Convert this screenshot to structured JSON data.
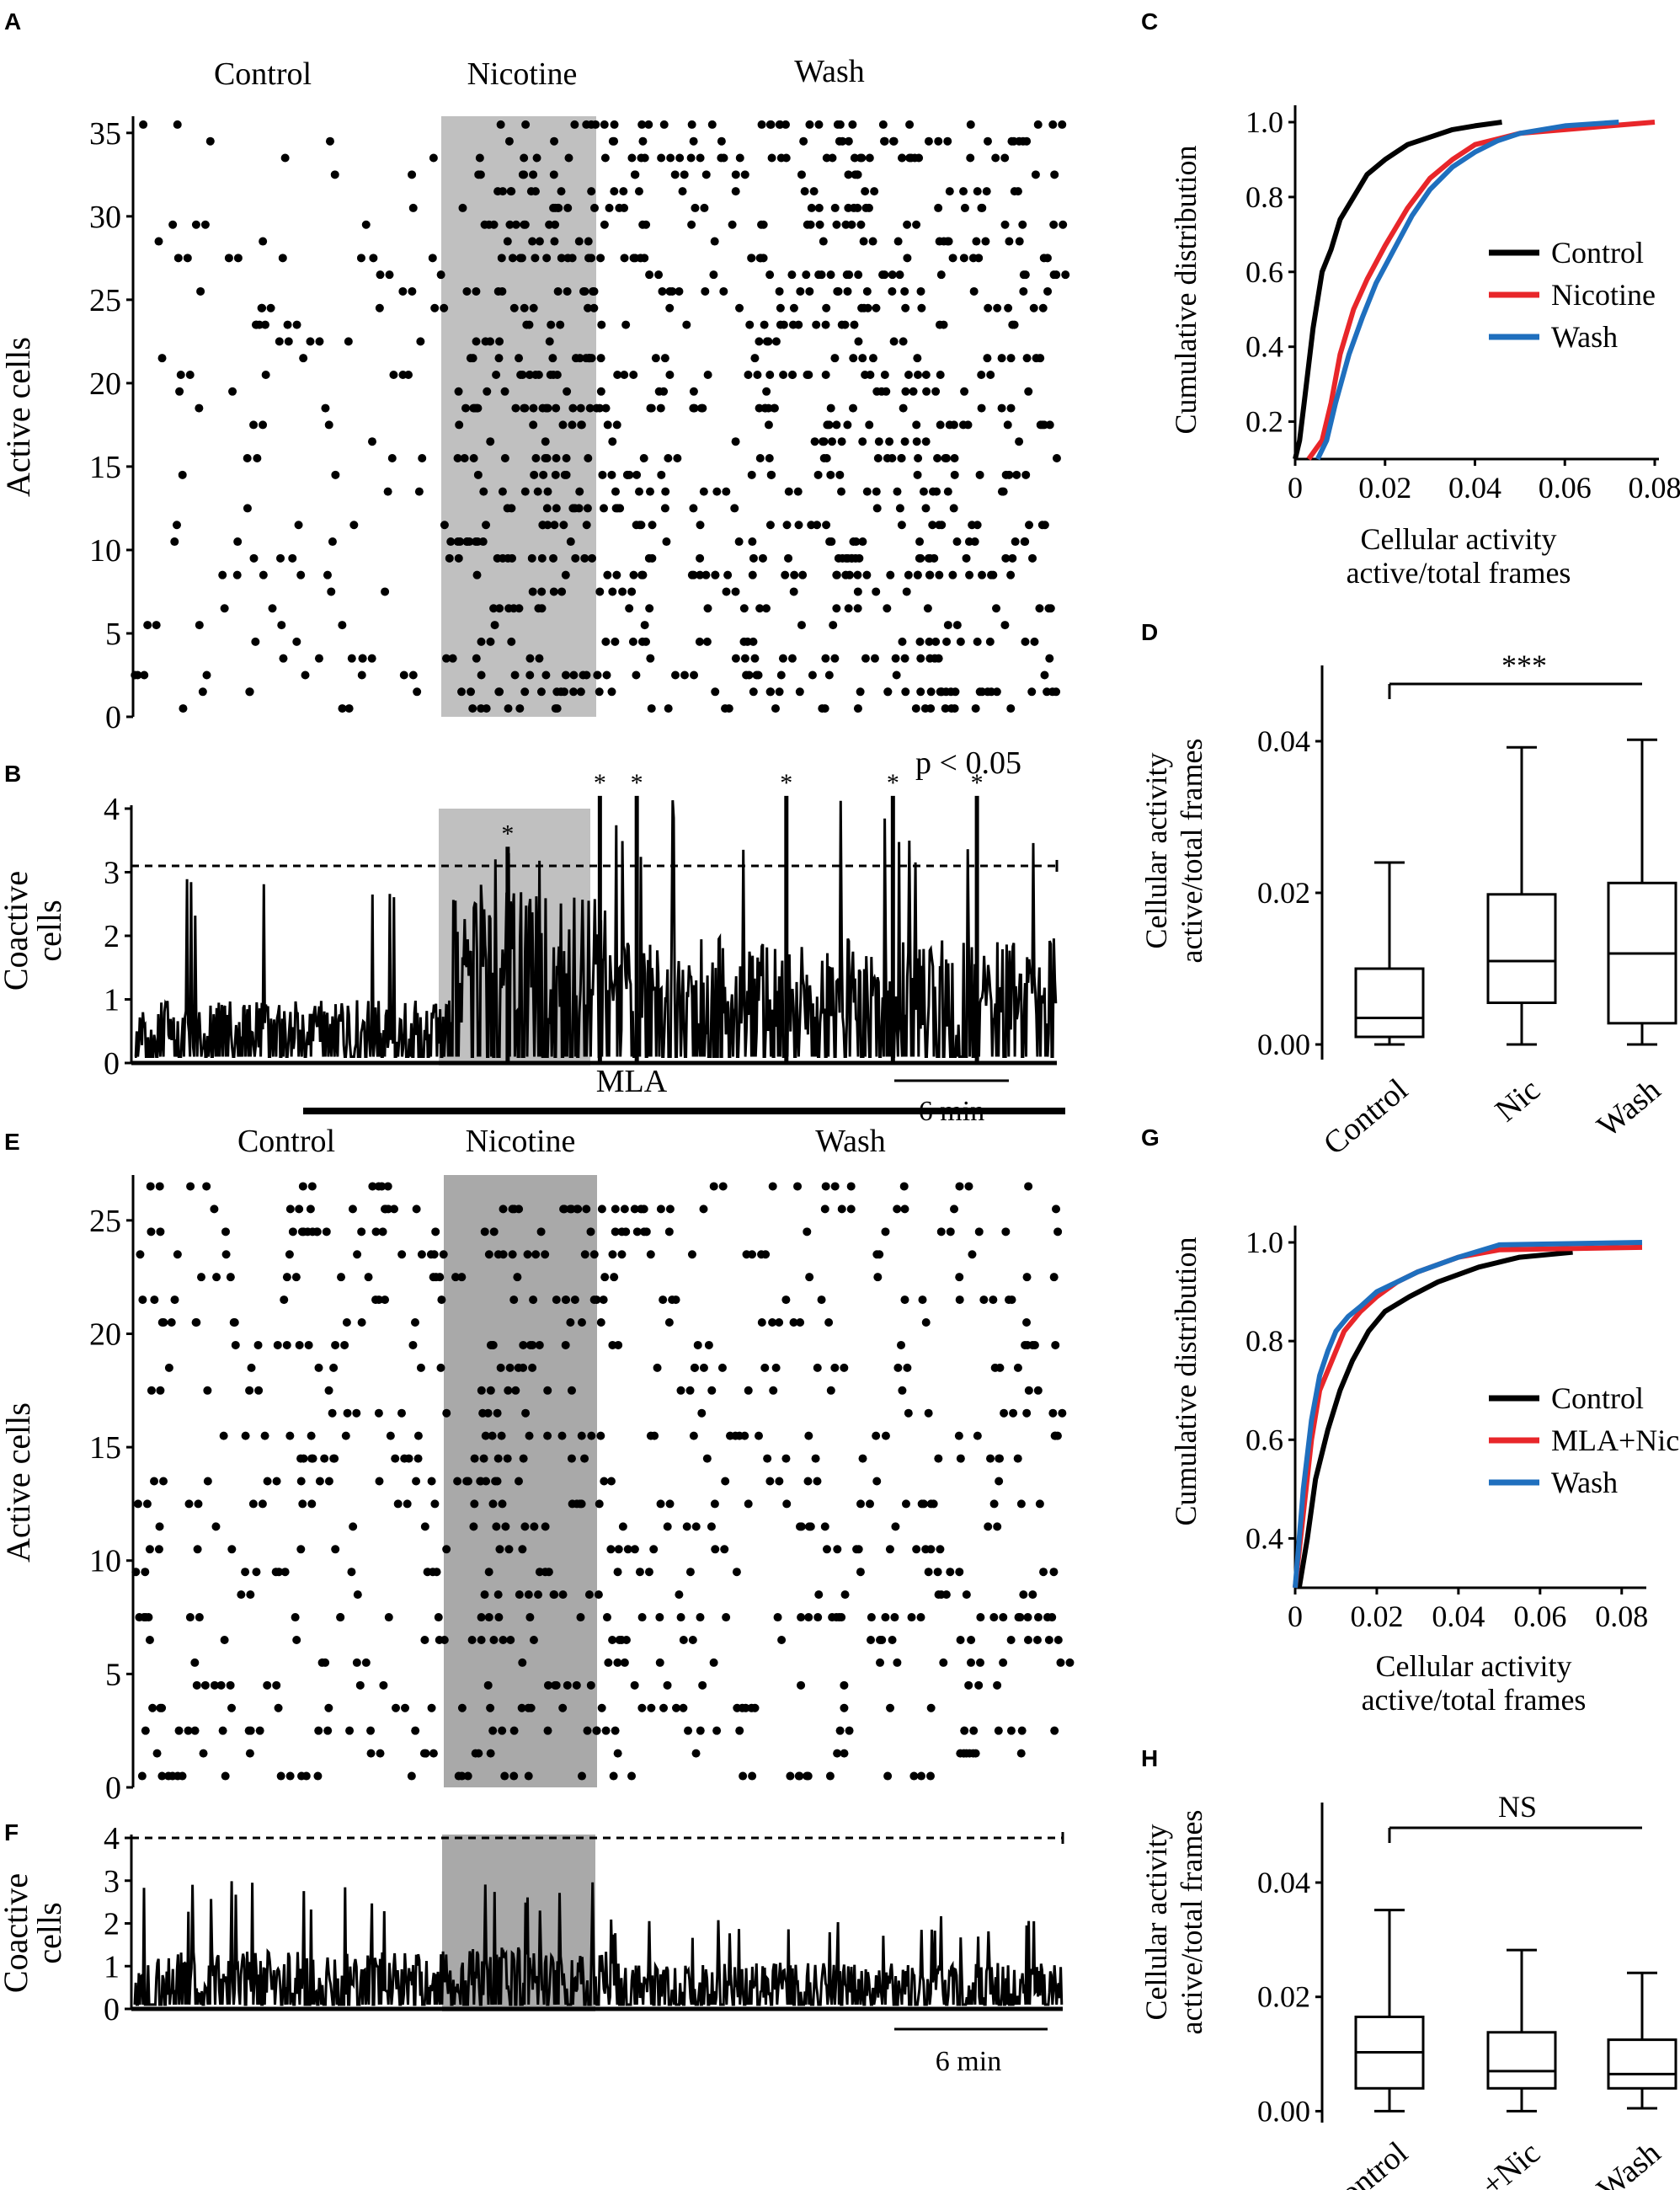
{
  "colors": {
    "ink": "#000000",
    "shade_a": "#c0c0c0",
    "shade_e": "#a9a9a9",
    "control": "#000000",
    "nicotine": "#e8262a",
    "wash": "#1f6fbe"
  },
  "panels": {
    "A": {
      "letter": "A"
    },
    "B": {
      "letter": "B"
    },
    "C": {
      "letter": "C"
    },
    "D": {
      "letter": "D"
    },
    "E": {
      "letter": "E"
    },
    "F": {
      "letter": "F"
    },
    "G": {
      "letter": "G"
    },
    "H": {
      "letter": "H"
    }
  },
  "chart_data": [
    {
      "id": "A",
      "type": "scatter",
      "subtype": "raster",
      "ylabel": "Active cells",
      "ylim": [
        0,
        36
      ],
      "yticks": [
        0,
        5,
        10,
        15,
        20,
        25,
        30,
        35
      ],
      "time_range_min": [
        0,
        45
      ],
      "condition_labels": [
        "Control",
        "Nicotine",
        "Wash"
      ],
      "shaded_epoch_min": [
        15.5,
        23.0
      ],
      "epochs_min": {
        "control": [
          0,
          15.5
        ],
        "nicotine": [
          15.5,
          23
        ],
        "wash": [
          23,
          45
        ]
      },
      "event_counts_approx": {
        "control": 105,
        "nicotine": 210,
        "wash": 500
      },
      "n_cells": 36
    },
    {
      "id": "B",
      "type": "line",
      "ylabel_lines": [
        "Coactive",
        "cells"
      ],
      "ylim": [
        0,
        4
      ],
      "yticks": [
        0,
        1,
        2,
        3,
        4
      ],
      "threshold": 3.1,
      "annotation": "p < 0.05",
      "significant_peak_markers": [
        "*",
        "*",
        "*",
        "*",
        "*",
        "*"
      ],
      "significant_peaks_min": [
        18.2,
        22.7,
        24.5,
        31.8,
        37.0,
        41.1
      ],
      "significant_peak_values": [
        3.4,
        4.2,
        4.2,
        4.2,
        4.2,
        4.2
      ],
      "scalebar_label": "6 min",
      "shaded_epoch_min": [
        15.5,
        23.0
      ],
      "mean_level": {
        "control": 0.55,
        "nicotine": 1.5,
        "wash": 1.1
      },
      "max_level": {
        "control": 3.0,
        "nicotine": 3.4,
        "wash": 4.2
      }
    },
    {
      "id": "C",
      "type": "line",
      "subtype": "cumulative",
      "xlabel_lines": [
        "Cellular activity",
        "active/total frames"
      ],
      "ylabel": "Cumulative distribution",
      "xlim": [
        0,
        0.08
      ],
      "ylim": [
        0.1,
        1.0
      ],
      "xticks": [
        "0",
        "0.02",
        "0.04",
        "0.06",
        "0.08"
      ],
      "yticks": [
        "0.2",
        "0.4",
        "0.6",
        "0.8",
        "1.0"
      ],
      "series": [
        {
          "name": "Control",
          "color": "#000000",
          "x": [
            0,
            0.001,
            0.002,
            0.004,
            0.006,
            0.008,
            0.01,
            0.013,
            0.016,
            0.02,
            0.025,
            0.03,
            0.035,
            0.04,
            0.046
          ],
          "y": [
            0.1,
            0.15,
            0.25,
            0.45,
            0.6,
            0.66,
            0.74,
            0.8,
            0.86,
            0.9,
            0.94,
            0.96,
            0.98,
            0.99,
            1.0
          ]
        },
        {
          "name": "Nicotine",
          "color": "#e8262a",
          "x": [
            0.003,
            0.006,
            0.008,
            0.01,
            0.013,
            0.016,
            0.02,
            0.025,
            0.03,
            0.035,
            0.04,
            0.05,
            0.06,
            0.07,
            0.08
          ],
          "y": [
            0.1,
            0.15,
            0.25,
            0.38,
            0.5,
            0.58,
            0.67,
            0.77,
            0.85,
            0.9,
            0.94,
            0.97,
            0.98,
            0.99,
            1.0
          ]
        },
        {
          "name": "Wash",
          "color": "#1f6fbe",
          "x": [
            0.005,
            0.007,
            0.009,
            0.012,
            0.015,
            0.018,
            0.022,
            0.026,
            0.03,
            0.035,
            0.04,
            0.045,
            0.05,
            0.06,
            0.072
          ],
          "y": [
            0.1,
            0.15,
            0.25,
            0.38,
            0.48,
            0.57,
            0.66,
            0.75,
            0.82,
            0.88,
            0.92,
            0.95,
            0.97,
            0.99,
            1.0
          ]
        }
      ],
      "legend_position": "right"
    },
    {
      "id": "D",
      "type": "box",
      "ylabel_lines": [
        "Cellular activity",
        "active/total frames"
      ],
      "ylim": [
        -0.002,
        0.05
      ],
      "yticks": [
        "0.00",
        "0.02",
        "0.04"
      ],
      "categories": [
        "Control",
        "Nic",
        "Wash"
      ],
      "boxes": [
        {
          "min": 0.0,
          "q1": 0.001,
          "median": 0.0035,
          "q3": 0.01,
          "max": 0.024
        },
        {
          "min": 0.0,
          "q1": 0.0055,
          "median": 0.011,
          "q3": 0.0198,
          "max": 0.0392
        },
        {
          "min": 0.0,
          "q1": 0.0028,
          "median": 0.012,
          "q3": 0.0213,
          "max": 0.0402
        }
      ],
      "significance": "***",
      "comparison": [
        "Control",
        "Wash"
      ]
    },
    {
      "id": "E",
      "type": "scatter",
      "subtype": "raster",
      "header": "MLA",
      "ylabel": "Active cells",
      "ylim": [
        0,
        27
      ],
      "yticks": [
        0,
        5,
        10,
        15,
        20,
        25
      ],
      "time_range_min": [
        0,
        45
      ],
      "condition_labels": [
        "Control",
        "Nicotine",
        "Wash"
      ],
      "shaded_epoch_min": [
        15.5,
        23.0
      ],
      "epochs_min": {
        "control": [
          0,
          15.5
        ],
        "nicotine": [
          15.5,
          23
        ],
        "wash": [
          23,
          45
        ]
      },
      "event_counts_approx": {
        "control": 190,
        "nicotine": 130,
        "wash": 270
      },
      "n_cells": 27
    },
    {
      "id": "F",
      "type": "line",
      "ylabel_lines": [
        "Coactive",
        "cells"
      ],
      "ylim": [
        0,
        4
      ],
      "yticks": [
        0,
        1,
        2,
        3,
        4
      ],
      "threshold": 4.0,
      "scalebar_label": "6 min",
      "shaded_epoch_min": [
        15.5,
        23.0
      ],
      "mean_level": {
        "control": 0.75,
        "nicotine": 0.8,
        "wash": 0.6
      },
      "max_level": {
        "control": 3.0,
        "nicotine": 3.0,
        "wash": 2.2
      }
    },
    {
      "id": "G",
      "type": "line",
      "subtype": "cumulative",
      "xlabel_lines": [
        "Cellular activity",
        "active/total frames"
      ],
      "ylabel": "Cumulative distribution",
      "xlim": [
        0,
        0.085
      ],
      "ylim": [
        0.3,
        1.0
      ],
      "xticks": [
        "0",
        "0.02",
        "0.04",
        "0.06",
        "0.08"
      ],
      "yticks": [
        "0.4",
        "0.6",
        "0.8",
        "1.0"
      ],
      "series": [
        {
          "name": "Control",
          "color": "#000000",
          "x": [
            0.001,
            0.003,
            0.005,
            0.008,
            0.011,
            0.014,
            0.018,
            0.022,
            0.028,
            0.035,
            0.045,
            0.055,
            0.068
          ],
          "y": [
            0.3,
            0.4,
            0.52,
            0.62,
            0.7,
            0.76,
            0.82,
            0.86,
            0.89,
            0.92,
            0.95,
            0.97,
            0.98
          ]
        },
        {
          "name": "MLA+Nic",
          "color": "#e8262a",
          "x": [
            0.0,
            0.002,
            0.004,
            0.006,
            0.009,
            0.012,
            0.016,
            0.02,
            0.025,
            0.03,
            0.04,
            0.05,
            0.085
          ],
          "y": [
            0.3,
            0.45,
            0.6,
            0.7,
            0.76,
            0.82,
            0.86,
            0.89,
            0.92,
            0.94,
            0.97,
            0.985,
            0.99
          ]
        },
        {
          "name": "Wash",
          "color": "#1f6fbe",
          "x": [
            0.0,
            0.002,
            0.004,
            0.006,
            0.008,
            0.01,
            0.013,
            0.016,
            0.02,
            0.025,
            0.03,
            0.04,
            0.05,
            0.085
          ],
          "y": [
            0.3,
            0.5,
            0.64,
            0.73,
            0.78,
            0.82,
            0.85,
            0.87,
            0.9,
            0.92,
            0.94,
            0.97,
            0.995,
            1.0
          ]
        }
      ],
      "legend_position": "right"
    },
    {
      "id": "H",
      "type": "box",
      "ylabel_lines": [
        "Cellular activity",
        "active/total frames"
      ],
      "ylim": [
        -0.002,
        0.054
      ],
      "yticks": [
        "0.00",
        "0.02",
        "0.04"
      ],
      "categories": [
        "Control",
        "MLA +Nic",
        "Wash"
      ],
      "boxes": [
        {
          "min": 0.0,
          "q1": 0.004,
          "median": 0.0103,
          "q3": 0.0165,
          "max": 0.0352
        },
        {
          "min": 0.0,
          "q1": 0.004,
          "median": 0.007,
          "q3": 0.0138,
          "max": 0.0282
        },
        {
          "min": 0.0005,
          "q1": 0.004,
          "median": 0.0065,
          "q3": 0.0125,
          "max": 0.0242
        }
      ],
      "significance": "NS",
      "comparison": [
        "Control",
        "Wash"
      ]
    }
  ]
}
